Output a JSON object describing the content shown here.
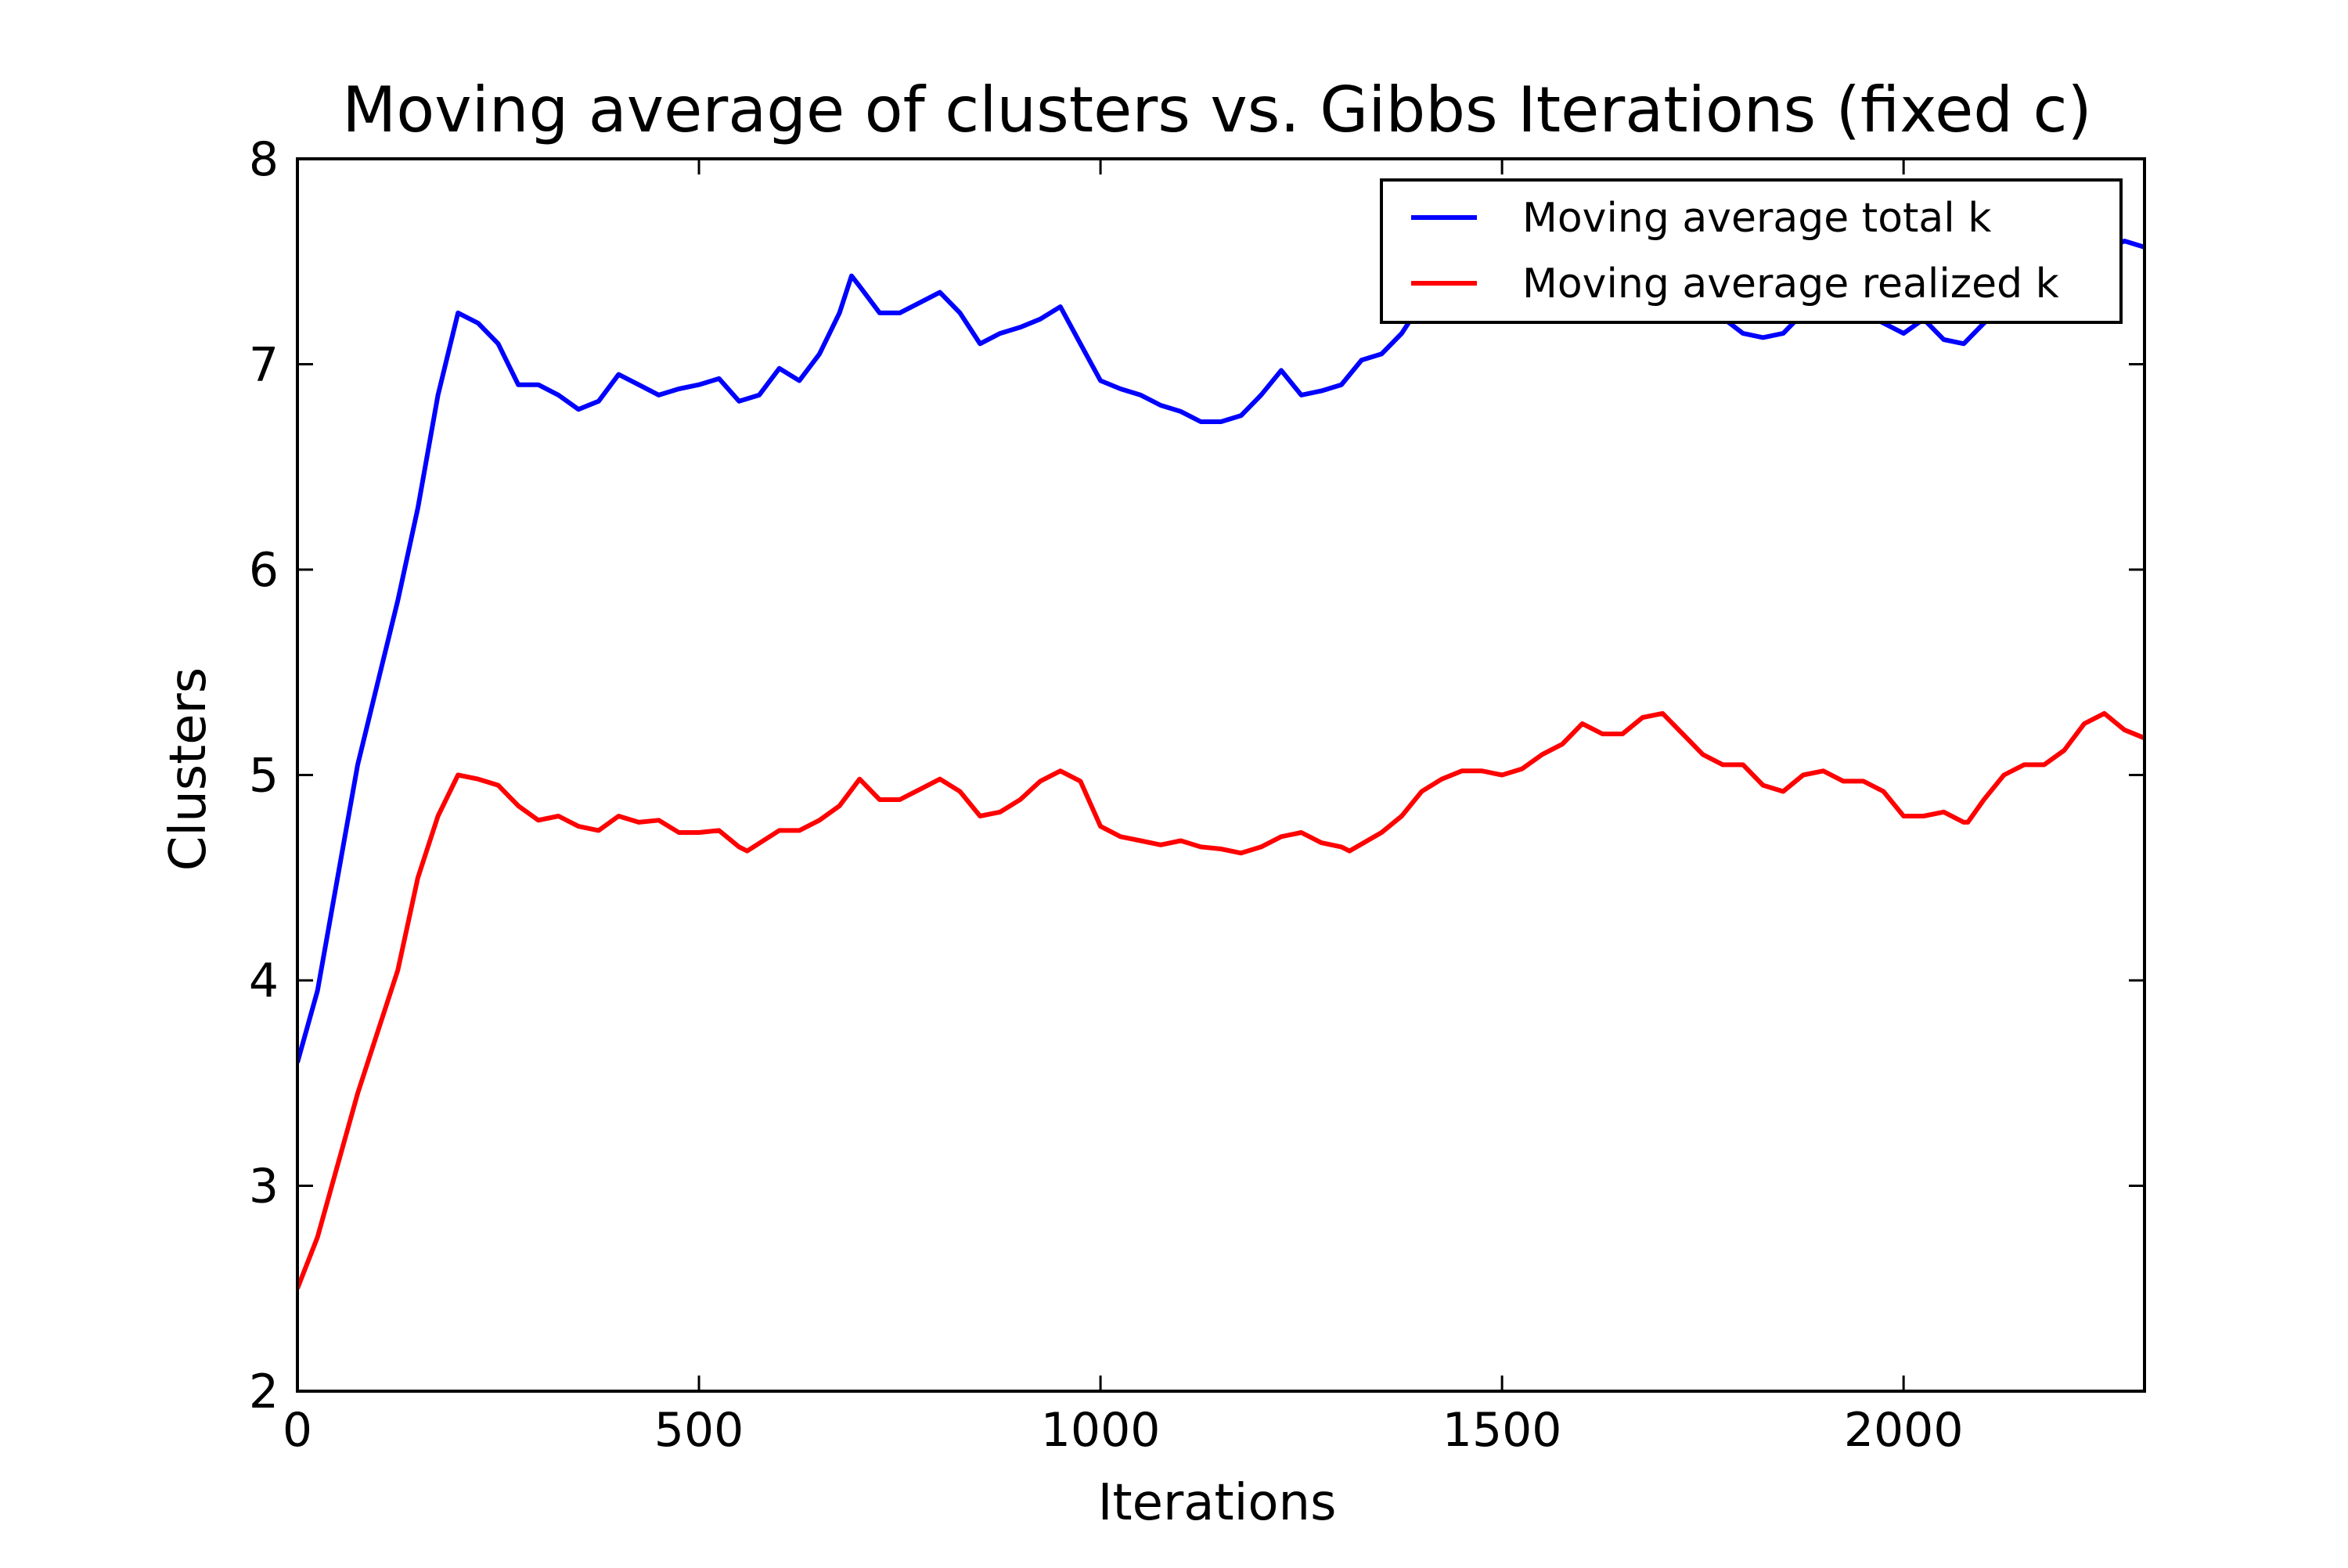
{
  "chart_data": {
    "type": "line",
    "title": "Moving average of clusters vs. Gibbs Iterations (fixed c)",
    "xlabel": "Iterations",
    "ylabel": "Clusters",
    "xlim": [
      0,
      2300
    ],
    "ylim": [
      2,
      8
    ],
    "x_ticks": [
      0,
      500,
      1000,
      1500,
      2000
    ],
    "y_ticks": [
      2,
      3,
      4,
      5,
      6,
      7,
      8
    ],
    "grid": false,
    "legend_position": "top-right",
    "series": [
      {
        "name": "Moving average total k",
        "color": "#0000ff",
        "x": [
          0,
          25,
          50,
          75,
          100,
          125,
          150,
          175,
          200,
          225,
          250,
          275,
          300,
          325,
          350,
          375,
          400,
          425,
          450,
          475,
          500,
          525,
          550,
          575,
          600,
          625,
          650,
          675,
          690,
          700,
          725,
          750,
          775,
          800,
          825,
          850,
          875,
          900,
          925,
          950,
          975,
          1000,
          1025,
          1050,
          1075,
          1100,
          1125,
          1150,
          1175,
          1200,
          1225,
          1250,
          1275,
          1300,
          1325,
          1350,
          1375,
          1400,
          1450,
          1500,
          1550,
          1600,
          1650,
          1700,
          1750,
          1800,
          1825,
          1850,
          1875,
          1900,
          1950,
          2000,
          2025,
          2050,
          2075,
          2100,
          2150,
          2200,
          2250,
          2275,
          2300
        ],
        "y": [
          3.6,
          3.95,
          4.5,
          5.05,
          5.45,
          5.85,
          6.3,
          6.85,
          7.25,
          7.2,
          7.1,
          6.9,
          6.9,
          6.85,
          6.78,
          6.82,
          6.95,
          6.9,
          6.85,
          6.88,
          6.9,
          6.93,
          6.82,
          6.85,
          6.98,
          6.92,
          7.05,
          7.25,
          7.43,
          7.38,
          7.25,
          7.25,
          7.3,
          7.35,
          7.25,
          7.1,
          7.15,
          7.18,
          7.22,
          7.28,
          7.1,
          6.92,
          6.88,
          6.85,
          6.8,
          6.77,
          6.72,
          6.72,
          6.75,
          6.85,
          6.97,
          6.85,
          6.87,
          6.9,
          7.02,
          7.05,
          7.15,
          7.3,
          7.4,
          7.45,
          7.4,
          7.3,
          7.35,
          7.35,
          7.3,
          7.15,
          7.13,
          7.15,
          7.25,
          7.3,
          7.25,
          7.15,
          7.22,
          7.12,
          7.1,
          7.2,
          7.35,
          7.45,
          7.55,
          7.6,
          7.57
        ]
      },
      {
        "name": "Moving average realized k",
        "color": "#ff0000",
        "x": [
          0,
          25,
          50,
          75,
          100,
          125,
          150,
          175,
          200,
          225,
          250,
          275,
          300,
          325,
          350,
          375,
          400,
          425,
          450,
          475,
          500,
          525,
          550,
          560,
          600,
          625,
          650,
          675,
          700,
          725,
          750,
          775,
          800,
          825,
          850,
          875,
          900,
          925,
          950,
          975,
          1000,
          1025,
          1050,
          1075,
          1100,
          1125,
          1150,
          1175,
          1200,
          1225,
          1250,
          1275,
          1300,
          1310,
          1350,
          1375,
          1400,
          1425,
          1450,
          1475,
          1500,
          1525,
          1550,
          1575,
          1600,
          1625,
          1650,
          1675,
          1700,
          1725,
          1750,
          1775,
          1800,
          1825,
          1850,
          1875,
          1900,
          1925,
          1950,
          1975,
          2000,
          2025,
          2050,
          2075,
          2080,
          2100,
          2125,
          2150,
          2175,
          2200,
          2225,
          2250,
          2275,
          2300
        ],
        "y": [
          2.5,
          2.75,
          3.1,
          3.45,
          3.75,
          4.05,
          4.5,
          4.8,
          5.0,
          4.98,
          4.95,
          4.85,
          4.78,
          4.8,
          4.75,
          4.73,
          4.8,
          4.77,
          4.78,
          4.72,
          4.72,
          4.73,
          4.65,
          4.63,
          4.73,
          4.73,
          4.78,
          4.85,
          4.98,
          4.88,
          4.88,
          4.93,
          4.98,
          4.92,
          4.8,
          4.82,
          4.88,
          4.97,
          5.02,
          4.97,
          4.75,
          4.7,
          4.68,
          4.66,
          4.68,
          4.65,
          4.64,
          4.62,
          4.65,
          4.7,
          4.72,
          4.67,
          4.65,
          4.63,
          4.72,
          4.8,
          4.92,
          4.98,
          5.02,
          5.02,
          5.0,
          5.03,
          5.1,
          5.15,
          5.25,
          5.2,
          5.2,
          5.28,
          5.3,
          5.2,
          5.1,
          5.05,
          5.05,
          4.95,
          4.92,
          5.0,
          5.02,
          4.97,
          4.97,
          4.92,
          4.8,
          4.8,
          4.82,
          4.77,
          4.77,
          4.88,
          5.0,
          5.05,
          5.05,
          5.12,
          5.25,
          5.3,
          5.22,
          5.18
        ]
      }
    ]
  }
}
